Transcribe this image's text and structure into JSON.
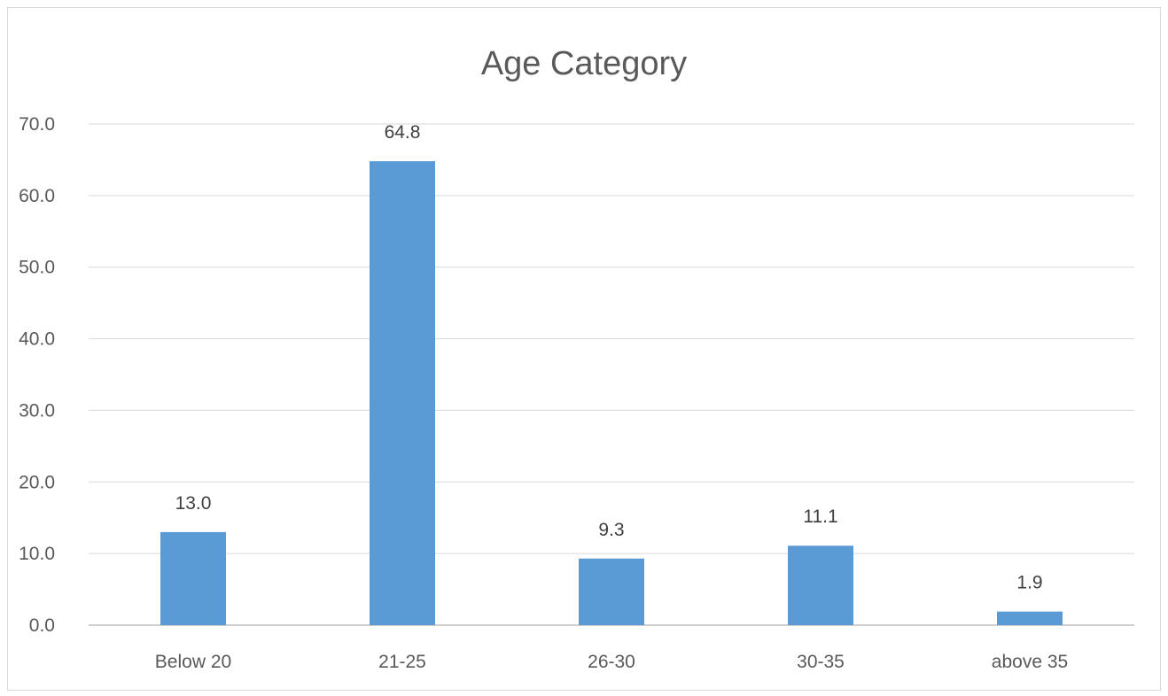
{
  "chart_data": {
    "type": "bar",
    "title": "Age Category",
    "xlabel": "",
    "ylabel": "",
    "categories": [
      "Below 20",
      "21-25",
      "26-30",
      "30-35",
      "above 35"
    ],
    "values": [
      13.0,
      64.8,
      9.3,
      11.1,
      1.9
    ],
    "data_labels": [
      "13.0",
      "64.8",
      "9.3",
      "11.1",
      "1.9"
    ],
    "ylim": [
      0,
      70
    ],
    "yticks": [
      0,
      10,
      20,
      30,
      40,
      50,
      60,
      70
    ],
    "ytick_labels": [
      "0.0",
      "10.0",
      "20.0",
      "30.0",
      "40.0",
      "50.0",
      "60.0",
      "70.0"
    ],
    "grid": true,
    "legend": "none",
    "colors": {
      "bar": "#5b9bd5",
      "grid": "#d9d9d9",
      "axis": "#bfbfbf",
      "text": "#595959"
    }
  }
}
